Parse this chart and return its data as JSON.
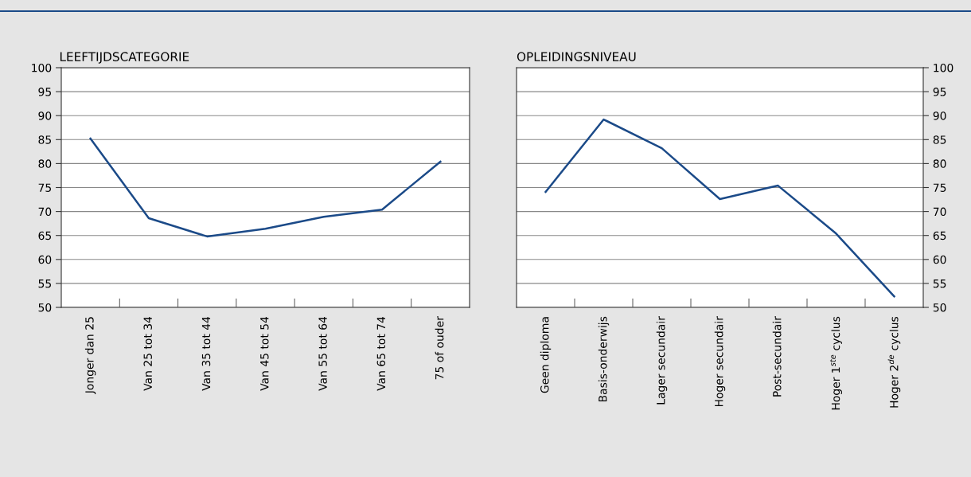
{
  "chart_data": [
    {
      "type": "line",
      "title": "LEEFTIJDSCATEGORIE",
      "categories": [
        "Jonger dan 25",
        "Van 25 tot 34",
        "Van 35 tot 44",
        "Van 45 tot 54",
        "Van 55 tot 64",
        "Van 65 tot 74",
        "75 of ouder"
      ],
      "series": [
        {
          "color": "#1b4a88",
          "values": [
            85.2,
            68.6,
            64.8,
            66.4,
            68.9,
            70.4,
            80.4
          ]
        }
      ],
      "ylim": [
        50,
        100
      ],
      "yticks": [
        50,
        55,
        60,
        65,
        70,
        75,
        80,
        85,
        90,
        95,
        100
      ],
      "grid": "y",
      "marker": "none",
      "line_style": "solid"
    },
    {
      "type": "line",
      "title": "OPLEIDINGSNIVEAU",
      "categories": [
        "Geen diploma",
        "Basis-onderwijs",
        "Lager secundair",
        "Hoger secundair",
        "Post-secundair",
        "Hoger 1$^{ste}$ cyclus",
        "Hoger 2$^{de}$ cyclus"
      ],
      "series": [
        {
          "color": "#1b4a88",
          "values": [
            74.1,
            89.2,
            83.2,
            72.6,
            75.4,
            65.4,
            52.3
          ]
        }
      ],
      "ylim": [
        50,
        100
      ],
      "yticks": [
        50,
        55,
        60,
        65,
        70,
        75,
        80,
        85,
        90,
        95,
        100
      ],
      "grid": "y",
      "marker": "none",
      "line_style": "solid"
    }
  ]
}
